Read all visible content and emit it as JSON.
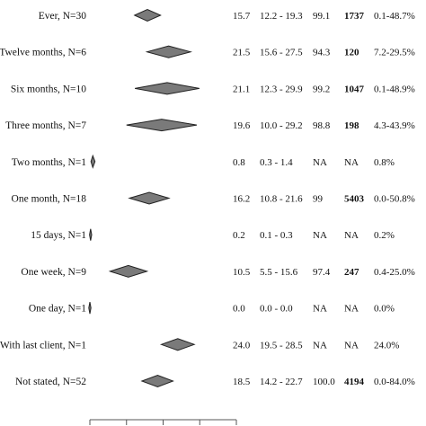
{
  "chart_data": {
    "type": "forest",
    "title": "",
    "xlabel": "",
    "ylabel": "",
    "xlim": [
      0,
      40
    ],
    "columns": [
      "estimate",
      "ci",
      "i2",
      "n",
      "range"
    ],
    "rows": [
      {
        "label": "Ever, N=30",
        "estimate": 15.7,
        "ci_low": 12.2,
        "ci_high": 19.3,
        "est_text": "15.7",
        "ci_text": "12.2 - 19.3",
        "i2_text": "99.1",
        "n_text": "1737",
        "range_text": "0.1-48.7%"
      },
      {
        "label": "Twelve months, N=6",
        "estimate": 21.5,
        "ci_low": 15.6,
        "ci_high": 27.5,
        "est_text": "21.5",
        "ci_text": "15.6 - 27.5",
        "i2_text": "94.3",
        "n_text": "120",
        "range_text": "7.2-29.5%"
      },
      {
        "label": "Six months, N=10",
        "estimate": 21.1,
        "ci_low": 12.3,
        "ci_high": 29.9,
        "est_text": "21.1",
        "ci_text": "12.3 - 29.9",
        "i2_text": "99.2",
        "n_text": "1047",
        "range_text": "0.1-48.9%"
      },
      {
        "label": "Three months, N=7",
        "estimate": 19.6,
        "ci_low": 10.0,
        "ci_high": 29.2,
        "est_text": "19.6",
        "ci_text": "10.0 - 29.2",
        "i2_text": "98.8",
        "n_text": "198",
        "range_text": "4.3-43.9%"
      },
      {
        "label": "Two months, N=1",
        "estimate": 0.8,
        "ci_low": 0.3,
        "ci_high": 1.4,
        "est_text": "0.8",
        "ci_text": "0.3  -  1.4",
        "i2_text": "NA",
        "n_text": "NA",
        "range_text": "0.8%"
      },
      {
        "label": "One month, N=18",
        "estimate": 16.2,
        "ci_low": 10.8,
        "ci_high": 21.6,
        "est_text": "16.2",
        "ci_text": "10.8 - 21.6",
        "i2_text": "99",
        "n_text": "5403",
        "range_text": "0.0-50.8%"
      },
      {
        "label": "15 days, N=1",
        "estimate": 0.2,
        "ci_low": 0.1,
        "ci_high": 0.3,
        "est_text": "0.2",
        "ci_text": "0.1  -  0.3",
        "i2_text": "NA",
        "n_text": "NA",
        "range_text": "0.2%"
      },
      {
        "label": "One week, N=9",
        "estimate": 10.5,
        "ci_low": 5.5,
        "ci_high": 15.6,
        "est_text": "10.5",
        "ci_text": "5.5  - 15.6",
        "i2_text": "97.4",
        "n_text": "247",
        "range_text": "0.4-25.0%"
      },
      {
        "label": "One day, N=1",
        "estimate": 0.0,
        "ci_low": 0.0,
        "ci_high": 0.0,
        "est_text": "0.0",
        "ci_text": "0.0  -  0.0",
        "i2_text": "NA",
        "n_text": "NA",
        "range_text": "0.0%"
      },
      {
        "label": "With last client, N=1",
        "estimate": 24.0,
        "ci_low": 19.5,
        "ci_high": 28.5,
        "est_text": "24.0",
        "ci_text": "19.5 - 28.5",
        "i2_text": "NA",
        "n_text": "NA",
        "range_text": "24.0%"
      },
      {
        "label": "Not stated, N=52",
        "estimate": 18.5,
        "ci_low": 14.2,
        "ci_high": 22.7,
        "est_text": "18.5",
        "ci_text": "14.2 - 22.7",
        "i2_text": "100.0",
        "n_text": "4194",
        "range_text": "0.0-84.0%"
      }
    ],
    "bold_column": "n",
    "colors": {
      "diamond_fill": "#7a7a7a",
      "diamond_stroke": "#222222",
      "text": "#111111"
    }
  }
}
